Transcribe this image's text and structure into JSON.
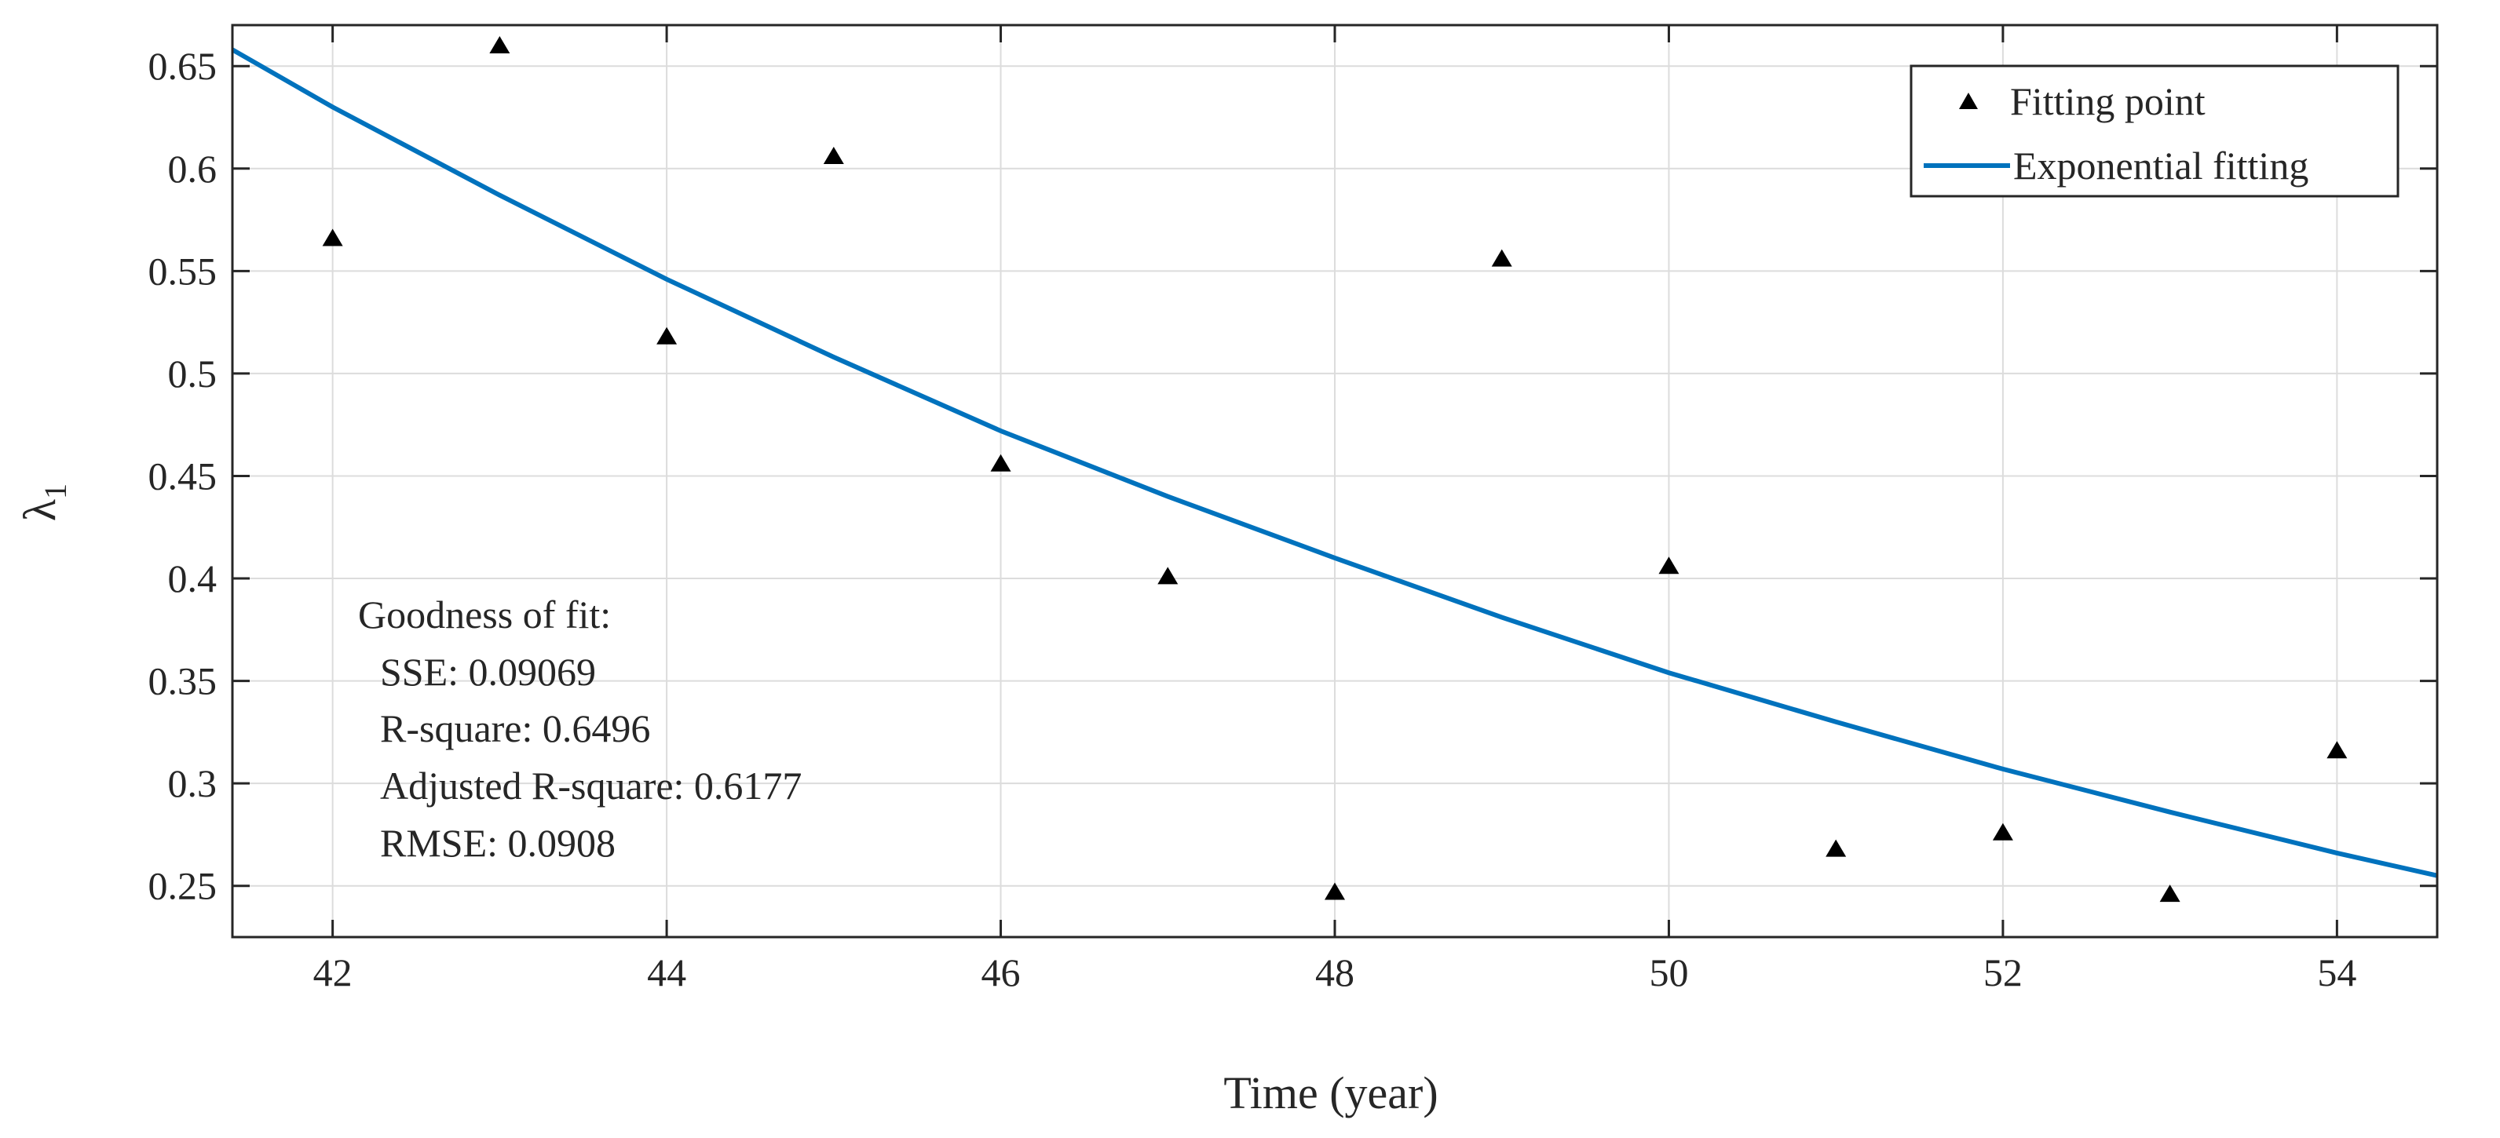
{
  "chart_data": {
    "type": "scatter",
    "xlabel": "Time (year)",
    "ylabel": "λ",
    "ylabel_subscript": "1",
    "xlim": [
      41.4,
      54.6
    ],
    "ylim": [
      0.225,
      0.67
    ],
    "xticks": [
      42,
      44,
      46,
      48,
      50,
      52,
      54
    ],
    "yticks": [
      0.25,
      0.3,
      0.35,
      0.4,
      0.45,
      0.5,
      0.55,
      0.6,
      0.65
    ],
    "xtick_labels": [
      "42",
      "44",
      "46",
      "48",
      "50",
      "52",
      "54"
    ],
    "ytick_labels": [
      "0.25",
      "0.3",
      "0.35",
      "0.4",
      "0.45",
      "0.5",
      "0.55",
      "0.6",
      "0.65"
    ],
    "grid": true,
    "legend_position": "top-right",
    "series": [
      {
        "name": "Fitting point",
        "kind": "scatter",
        "marker": "triangle",
        "color": "#000000",
        "x": [
          42,
          43,
          44,
          45,
          46,
          47,
          48,
          49,
          50,
          51,
          52,
          53,
          54
        ],
        "y": [
          0.566,
          0.66,
          0.518,
          0.606,
          0.456,
          0.401,
          0.247,
          0.556,
          0.406,
          0.268,
          0.276,
          0.246,
          0.316
        ]
      },
      {
        "name": "Exponential fitting",
        "kind": "line",
        "color": "#0072BD",
        "x": [
          41.4,
          42,
          43,
          44,
          45,
          46,
          47,
          48,
          49,
          50,
          51,
          52,
          53,
          54,
          54.6
        ],
        "y": [
          0.658,
          0.63,
          0.587,
          0.546,
          0.508,
          0.472,
          0.44,
          0.41,
          0.381,
          0.354,
          0.33,
          0.307,
          0.286,
          0.266,
          0.255
        ]
      }
    ],
    "annotation": {
      "title": "Goodness of fit:",
      "lines": [
        "SSE: 0.09069",
        "R-square: 0.6496",
        "Adjusted R-square: 0.6177",
        "RMSE: 0.0908"
      ]
    }
  }
}
